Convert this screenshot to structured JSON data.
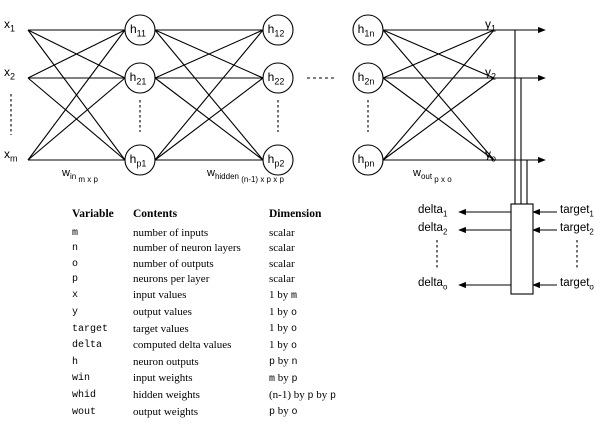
{
  "inputs": [
    {
      "base": "x",
      "sub": "1"
    },
    {
      "base": "x",
      "sub": "2"
    },
    {
      "base": "x",
      "sub": "m"
    }
  ],
  "layer1": [
    {
      "base": "h",
      "sub": "11"
    },
    {
      "base": "h",
      "sub": "21"
    },
    {
      "base": "h",
      "sub": "p1"
    }
  ],
  "layer2": [
    {
      "base": "h",
      "sub": "12"
    },
    {
      "base": "h",
      "sub": "22"
    },
    {
      "base": "h",
      "sub": "p2"
    }
  ],
  "layerN": [
    {
      "base": "h",
      "sub": "1n"
    },
    {
      "base": "h",
      "sub": "2n"
    },
    {
      "base": "h",
      "sub": "pn"
    }
  ],
  "outputs": [
    {
      "base": "y",
      "sub": "1"
    },
    {
      "base": "y",
      "sub": "2"
    },
    {
      "base": "y",
      "sub": "o"
    }
  ],
  "weights": {
    "w_in": {
      "base": "w",
      "sub1": "in",
      "sub2": "m x p"
    },
    "w_hidden": {
      "base": "w",
      "sub1": "hidden",
      "sub2": "(n-1) x p x p"
    },
    "w_out": {
      "base": "w",
      "sub1": "out",
      "sub2": "p x o"
    }
  },
  "deltas": [
    {
      "base": "delta",
      "sub": "1"
    },
    {
      "base": "delta",
      "sub": "2"
    },
    {
      "base": "delta",
      "sub": "o"
    }
  ],
  "targets": [
    {
      "base": "target",
      "sub": "1"
    },
    {
      "base": "target",
      "sub": "2"
    },
    {
      "base": "target",
      "sub": "o"
    }
  ],
  "table": {
    "headers": {
      "variable": "Variable",
      "contents": "Contents",
      "dimension": "Dimension"
    },
    "rows": [
      {
        "variable": "m",
        "contents": "number of inputs",
        "dimension": [
          {
            "t": "scalar",
            "mono": false
          }
        ]
      },
      {
        "variable": "n",
        "contents": "number of neuron layers",
        "dimension": [
          {
            "t": "scalar",
            "mono": false
          }
        ]
      },
      {
        "variable": "o",
        "contents": "number of outputs",
        "dimension": [
          {
            "t": "scalar",
            "mono": false
          }
        ]
      },
      {
        "variable": "p",
        "contents": "neurons per layer",
        "dimension": [
          {
            "t": "scalar",
            "mono": false
          }
        ]
      },
      {
        "variable": "x",
        "contents": "input values",
        "dimension": [
          {
            "t": "1 by ",
            "mono": false
          },
          {
            "t": "m",
            "mono": true
          }
        ]
      },
      {
        "variable": "y",
        "contents": "output values",
        "dimension": [
          {
            "t": "1 by ",
            "mono": false
          },
          {
            "t": "o",
            "mono": true
          }
        ]
      },
      {
        "variable": "target",
        "contents": "target values",
        "dimension": [
          {
            "t": "1 by ",
            "mono": false
          },
          {
            "t": "o",
            "mono": true
          }
        ]
      },
      {
        "variable": "delta",
        "contents": "computed delta values",
        "dimension": [
          {
            "t": "1 by ",
            "mono": false
          },
          {
            "t": "o",
            "mono": true
          }
        ]
      },
      {
        "variable": "h",
        "contents": "neuron outputs",
        "dimension": [
          {
            "t": "p",
            "mono": true
          },
          {
            "t": " by ",
            "mono": false
          },
          {
            "t": "n",
            "mono": true
          }
        ]
      },
      {
        "variable": "win",
        "contents": "input weights",
        "dimension": [
          {
            "t": "m",
            "mono": true
          },
          {
            "t": " by ",
            "mono": false
          },
          {
            "t": "p",
            "mono": true
          }
        ]
      },
      {
        "variable": "whid",
        "contents": "hidden weights",
        "dimension": [
          {
            "t": "(n-1) by ",
            "mono": false
          },
          {
            "t": "p",
            "mono": true
          },
          {
            "t": " by ",
            "mono": false
          },
          {
            "t": "p",
            "mono": true
          }
        ]
      },
      {
        "variable": "wout",
        "contents": "output weights",
        "dimension": [
          {
            "t": "p",
            "mono": true
          },
          {
            "t": " by ",
            "mono": false
          },
          {
            "t": "o",
            "mono": true
          }
        ]
      }
    ]
  }
}
